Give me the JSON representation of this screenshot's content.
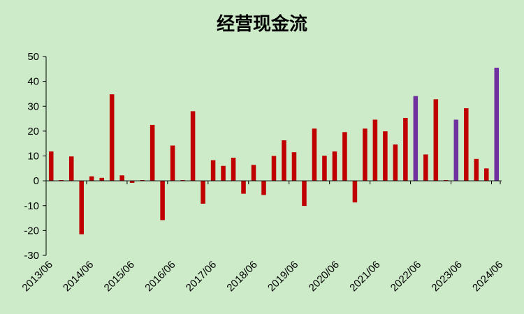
{
  "chart_data": {
    "type": "bar",
    "title": "经营现金流",
    "xlabel": "",
    "ylabel": "",
    "ylim": [
      -30,
      50
    ],
    "yticks": [
      50,
      40,
      30,
      20,
      10,
      0,
      -10,
      -20,
      -30
    ],
    "grid": false,
    "legend": "none",
    "tick_labels": [
      "2013/06",
      "2014/06",
      "2015/06",
      "2016/06",
      "2017/06",
      "2018/06",
      "2019/06",
      "2020/06",
      "2021/06",
      "2022/06",
      "2023/06",
      "2024/06"
    ],
    "values": [
      11.8,
      0.3,
      9.8,
      -21.5,
      1.8,
      1.2,
      34.8,
      2.2,
      -0.8,
      0.3,
      22.5,
      -15.8,
      14.2,
      0.3,
      28.0,
      -9.2,
      8.3,
      6.0,
      9.3,
      -5.2,
      6.4,
      -5.7,
      10.0,
      16.3,
      11.5,
      -10.1,
      21.0,
      10.1,
      11.8,
      19.6,
      -8.7,
      21.0,
      24.6,
      19.9,
      14.6,
      25.3,
      34.1,
      10.6,
      32.8,
      0.3,
      24.6,
      29.2,
      8.8,
      5.0,
      45.5
    ],
    "colors": {
      "default": "#c00000",
      "annual": "#7030a0",
      "background": "#cdebc9",
      "axis": "#000000"
    },
    "annual_indices": [
      36,
      40,
      44
    ]
  }
}
